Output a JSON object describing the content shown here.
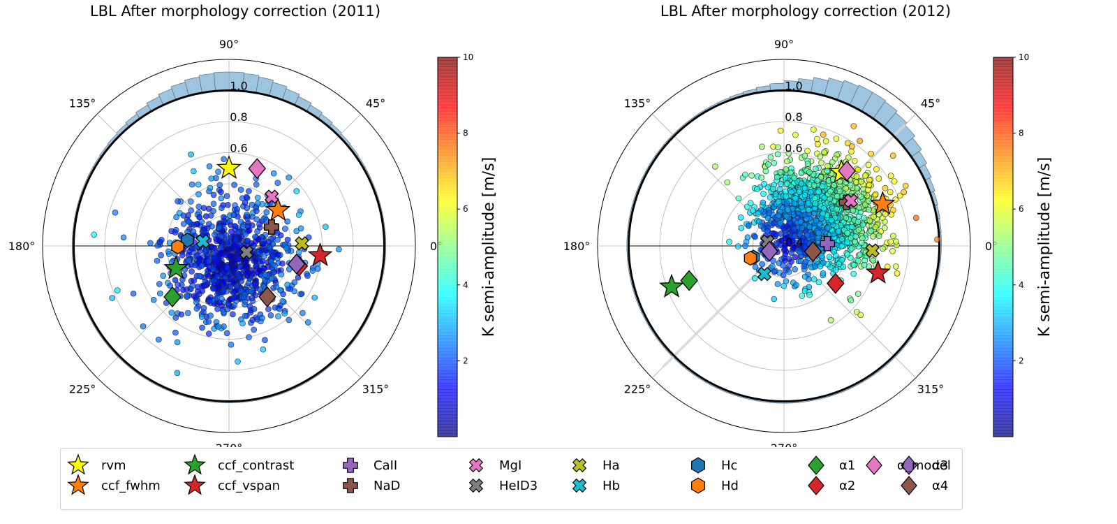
{
  "chart_data": [
    {
      "type": "polar-scatter",
      "title": "LBL After morphology correction (2011)",
      "angle_tick_labels": [
        "0°",
        "45°",
        "90°",
        "135°",
        "180°",
        "225°",
        "270°",
        "315°"
      ],
      "radial_tick_labels": [
        "0.6",
        "0.8",
        "1.0"
      ],
      "radial_ticks": [
        0.2,
        0.4,
        0.6,
        0.8,
        1.0
      ],
      "rlim": [
        0,
        1.2
      ],
      "colorbar": {
        "label": "K semi-amplitude [m/s]",
        "ticks": [
          2,
          4,
          6,
          8,
          10
        ],
        "range": [
          0,
          10
        ],
        "colormap": "jet"
      },
      "scatter_cloud": {
        "center_r": 0.1,
        "center_theta_deg": 270,
        "spread": 0.24,
        "k_range": [
          0,
          4
        ]
      },
      "markers": [
        {
          "name": "rvm",
          "r": 0.5,
          "theta": 90
        },
        {
          "name": "ccf_fwhm",
          "r": 0.39,
          "theta": 36
        },
        {
          "name": "ccf_contrast",
          "r": 0.37,
          "theta": 203
        },
        {
          "name": "ccf_vspan",
          "r": 0.59,
          "theta": 354
        },
        {
          "name": "CaII",
          "r": 0.3,
          "theta": 24
        },
        {
          "name": "NaD",
          "r": 0.3,
          "theta": 24
        },
        {
          "name": "MgI",
          "r": 0.42,
          "theta": 49
        },
        {
          "name": "HeID3",
          "r": 0.12,
          "theta": 340
        },
        {
          "name": "Ha",
          "r": 0.47,
          "theta": 2
        },
        {
          "name": "Hb",
          "r": 0.17,
          "theta": 170
        },
        {
          "name": "Hc",
          "r": 0.27,
          "theta": 172
        },
        {
          "name": "Hd",
          "r": 0.33,
          "theta": 181
        },
        {
          "name": "α1",
          "r": 0.49,
          "theta": 222
        },
        {
          "name": "α2",
          "r": 0.47,
          "theta": 344
        },
        {
          "name": "α3",
          "r": 0.45,
          "theta": 345
        },
        {
          "name": "α4",
          "r": 0.41,
          "theta": 307
        },
        {
          "name": "α_model",
          "r": 0.53,
          "theta": 70
        }
      ],
      "histogram_peak_deg": 90
    },
    {
      "type": "polar-scatter",
      "title": "LBL After morphology correction (2012)",
      "angle_tick_labels": [
        "0°",
        "45°",
        "90°",
        "135°",
        "180°",
        "225°",
        "270°",
        "315°"
      ],
      "radial_tick_labels": [
        "0.6",
        "0.4",
        "0.8",
        "1.0"
      ],
      "radial_ticks": [
        0.2,
        0.4,
        0.6,
        0.8,
        1.0
      ],
      "rlim": [
        0,
        1.2
      ],
      "colorbar": {
        "label": "K semi-amplitude [m/s]",
        "ticks": [
          2,
          4,
          6,
          8,
          10
        ],
        "range": [
          0,
          10
        ],
        "colormap": "jet"
      },
      "scatter_cloud": {
        "center_r": 0.3,
        "center_theta_deg": 40,
        "spread": 0.22,
        "k_range": [
          0,
          6
        ]
      },
      "markers": [
        {
          "name": "rvm",
          "r": 0.6,
          "theta": 52
        },
        {
          "name": "ccf_fwhm",
          "r": 0.69,
          "theta": 23
        },
        {
          "name": "ccf_vspan",
          "r": 0.63,
          "theta": 344
        },
        {
          "name": "ccf_contrast",
          "r": 0.77,
          "theta": 200
        },
        {
          "name": "CaII",
          "r": 0.28,
          "theta": 3
        },
        {
          "name": "NaD",
          "r": 0.49,
          "theta": 35
        },
        {
          "name": "MgI",
          "r": 0.52,
          "theta": 34
        },
        {
          "name": "HeID3",
          "r": 0.11,
          "theta": 165
        },
        {
          "name": "Ha",
          "r": 0.57,
          "theta": 357
        },
        {
          "name": "Hb",
          "r": 0.22,
          "theta": 235
        },
        {
          "name": "Hc",
          "r": 0.21,
          "theta": 200
        },
        {
          "name": "Hd",
          "r": 0.23,
          "theta": 200
        },
        {
          "name": "α1",
          "r": 0.65,
          "theta": 200
        },
        {
          "name": "α2",
          "r": 0.41,
          "theta": 324
        },
        {
          "name": "α3",
          "r": 0.1,
          "theta": 200
        },
        {
          "name": "α4",
          "r": 0.19,
          "theta": 349
        },
        {
          "name": "α_model",
          "r": 0.63,
          "theta": 50
        }
      ],
      "histogram_peak_deg": 60
    }
  ],
  "legend": {
    "items": [
      {
        "label": "rvm",
        "marker": "star",
        "color": "#ffff00"
      },
      {
        "label": "ccf_fwhm",
        "marker": "star",
        "color": "#ff7f0e"
      },
      {
        "label": "ccf_contrast",
        "marker": "star",
        "color": "#2ca02c"
      },
      {
        "label": "ccf_vspan",
        "marker": "star",
        "color": "#d62728"
      },
      {
        "label": "CaII",
        "marker": "plus",
        "color": "#9467bd"
      },
      {
        "label": "NaD",
        "marker": "plus",
        "color": "#8c564b"
      },
      {
        "label": "MgI",
        "marker": "x",
        "color": "#e377c2"
      },
      {
        "label": "HeID3",
        "marker": "x",
        "color": "#7f7f7f"
      },
      {
        "label": "Ha",
        "marker": "x",
        "color": "#bcbd22"
      },
      {
        "label": "Hb",
        "marker": "x",
        "color": "#17becf"
      },
      {
        "label": "Hc",
        "marker": "hexagon",
        "color": "#1f77b4"
      },
      {
        "label": "Hd",
        "marker": "hexagon",
        "color": "#ff7f0e"
      },
      {
        "label": "α1",
        "marker": "diamond",
        "color": "#2ca02c"
      },
      {
        "label": "α2",
        "marker": "diamond",
        "color": "#d62728"
      },
      {
        "label": "α3",
        "marker": "diamond",
        "color": "#9467bd"
      },
      {
        "label": "α4",
        "marker": "diamond",
        "color": "#8c564b"
      },
      {
        "label": "α_model",
        "marker": "diamond",
        "color": "#e377c2"
      }
    ]
  }
}
